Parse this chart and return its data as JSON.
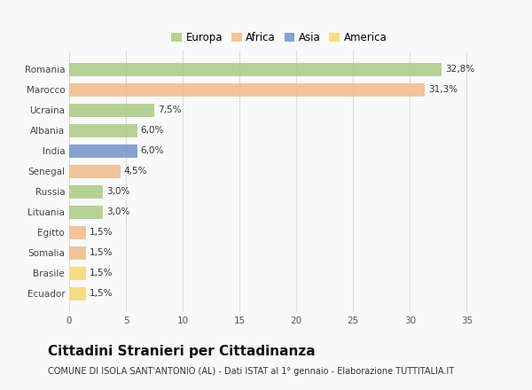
{
  "categories": [
    "Romania",
    "Marocco",
    "Ucraina",
    "Albania",
    "India",
    "Senegal",
    "Russia",
    "Lituania",
    "Egitto",
    "Somalia",
    "Brasile",
    "Ecuador"
  ],
  "values": [
    32.8,
    31.3,
    7.5,
    6.0,
    6.0,
    4.5,
    3.0,
    3.0,
    1.5,
    1.5,
    1.5,
    1.5
  ],
  "labels": [
    "32,8%",
    "31,3%",
    "7,5%",
    "6,0%",
    "6,0%",
    "4,5%",
    "3,0%",
    "3,0%",
    "1,5%",
    "1,5%",
    "1,5%",
    "1,5%"
  ],
  "colors": [
    "#a8c97f",
    "#f0b986",
    "#a8c97f",
    "#a8c97f",
    "#6e8fc9",
    "#f0b986",
    "#a8c97f",
    "#a8c97f",
    "#f0b986",
    "#f0b986",
    "#f5d76e",
    "#f5d76e"
  ],
  "legend_labels": [
    "Europa",
    "Africa",
    "Asia",
    "America"
  ],
  "legend_colors": [
    "#a8c97f",
    "#f0b986",
    "#6e8fc9",
    "#f5d76e"
  ],
  "xlim": [
    0,
    37
  ],
  "xticks": [
    0,
    5,
    10,
    15,
    20,
    25,
    30,
    35
  ],
  "title": "Cittadini Stranieri per Cittadinanza",
  "subtitle": "COMUNE DI ISOLA SANT'ANTONIO (AL) - Dati ISTAT al 1° gennaio - Elaborazione TUTTITALIA.IT",
  "bg_color": "#f9f9f9",
  "grid_color": "#dddddd",
  "bar_height": 0.65,
  "label_fontsize": 7.5,
  "tick_fontsize": 7.5,
  "legend_fontsize": 8.5,
  "title_fontsize": 11,
  "subtitle_fontsize": 7.0
}
